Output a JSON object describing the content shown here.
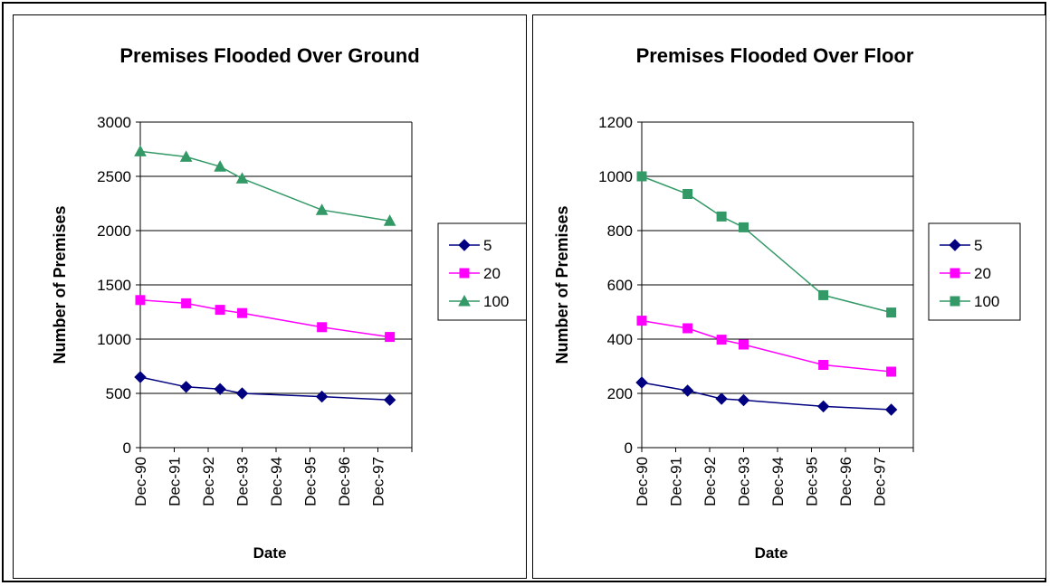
{
  "chart_data": [
    {
      "type": "line",
      "title": "Premises Flooded Over Ground",
      "xlabel": "Date",
      "ylabel": "Number of Premises",
      "x_ticks": [
        "Dec-90",
        "Dec-91",
        "Dec-92",
        "Dec-93",
        "Dec-94",
        "Dec-95",
        "Dec-96",
        "Dec-97"
      ],
      "y_ticks": [
        "0",
        "500",
        "1000",
        "1500",
        "2000",
        "2500",
        "3000"
      ],
      "ylim": [
        0,
        3000
      ],
      "grid": true,
      "legend": "right",
      "x": [
        "Dec-90",
        "Dec-91.4",
        "Dec-92.35",
        "Dec-93",
        "Dec-95.4",
        "Dec-97.5"
      ],
      "series": [
        {
          "name": "5",
          "color": "#000080",
          "marker": "diamond",
          "x": [
            0,
            1.35,
            2.35,
            3.0,
            5.35,
            7.35
          ],
          "values": [
            650,
            560,
            540,
            500,
            470,
            440
          ]
        },
        {
          "name": "20",
          "color": "#FF00FF",
          "marker": "square",
          "x": [
            0,
            1.35,
            2.35,
            3.0,
            5.35,
            7.35
          ],
          "values": [
            1360,
            1330,
            1270,
            1240,
            1110,
            1020
          ]
        },
        {
          "name": "100",
          "color": "#339966",
          "marker": "triangle",
          "x": [
            0,
            1.35,
            2.35,
            3.0,
            5.35,
            7.35
          ],
          "values": [
            2730,
            2680,
            2590,
            2480,
            2190,
            2090
          ]
        }
      ]
    },
    {
      "type": "line",
      "title": "Premises Flooded Over Floor",
      "xlabel": "Date",
      "ylabel": "Number of Premises",
      "x_ticks": [
        "Dec-90",
        "Dec-91",
        "Dec-92",
        "Dec-93",
        "Dec-94",
        "Dec-95",
        "Dec-96",
        "Dec-97"
      ],
      "y_ticks": [
        "0",
        "200",
        "400",
        "600",
        "800",
        "1000",
        "1200"
      ],
      "ylim": [
        0,
        1200
      ],
      "grid": true,
      "legend": "right",
      "series": [
        {
          "name": "5",
          "color": "#000080",
          "marker": "diamond",
          "x": [
            0,
            1.35,
            2.35,
            3.0,
            5.35,
            7.35
          ],
          "values": [
            240,
            210,
            180,
            175,
            152,
            140
          ]
        },
        {
          "name": "20",
          "color": "#FF00FF",
          "marker": "square",
          "x": [
            0,
            1.35,
            2.35,
            3.0,
            5.35,
            7.35
          ],
          "values": [
            468,
            440,
            398,
            380,
            305,
            280
          ]
        },
        {
          "name": "100",
          "color": "#339966",
          "marker": "square",
          "x": [
            0,
            1.35,
            2.35,
            3.0,
            5.35,
            7.35
          ],
          "values": [
            1000,
            935,
            852,
            812,
            562,
            498
          ]
        }
      ]
    }
  ]
}
